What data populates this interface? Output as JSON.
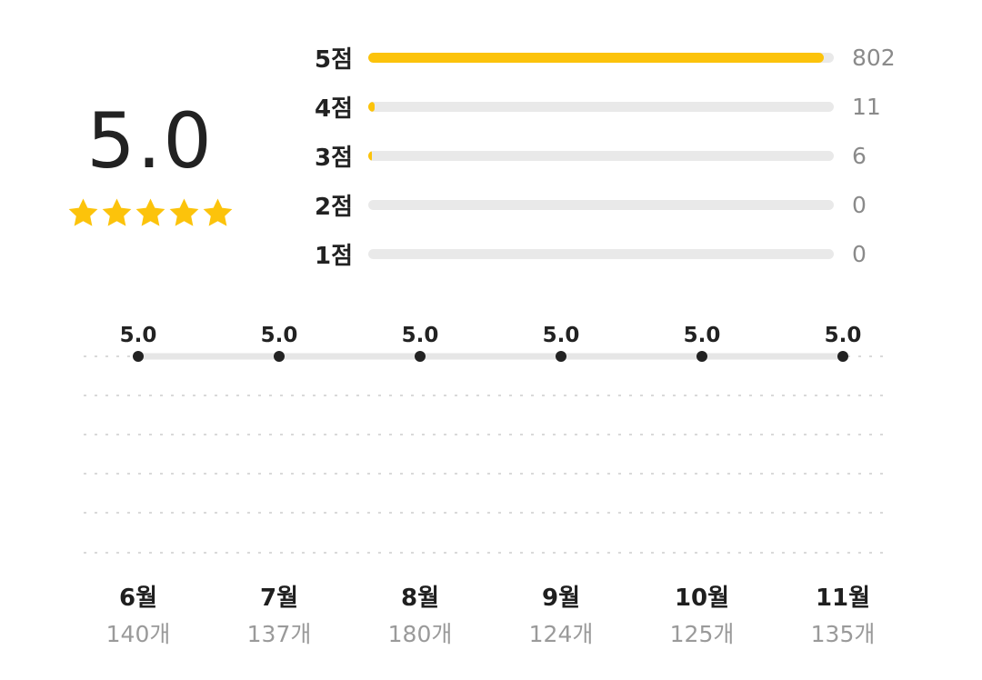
{
  "summary": {
    "average": "5.0",
    "stars_filled": 5,
    "stars_total": 5,
    "star_color": "#fcc30b"
  },
  "distribution": {
    "bar_color": "#fcc30b",
    "track_color": "#e9e9e9",
    "rows": [
      {
        "label": "5점",
        "count": "802",
        "value": 802
      },
      {
        "label": "4점",
        "count": "11",
        "value": 11
      },
      {
        "label": "3점",
        "count": "6",
        "value": 6
      },
      {
        "label": "2점",
        "count": "0",
        "value": 0
      },
      {
        "label": "1점",
        "count": "0",
        "value": 0
      }
    ]
  },
  "chart_data": {
    "type": "line",
    "categories": [
      "6월",
      "7월",
      "8월",
      "9월",
      "10월",
      "11월"
    ],
    "values": [
      5.0,
      5.0,
      5.0,
      5.0,
      5.0,
      5.0
    ],
    "value_labels": [
      "5.0",
      "5.0",
      "5.0",
      "5.0",
      "5.0",
      "5.0"
    ],
    "counts": [
      "140개",
      "137개",
      "180개",
      "124개",
      "125개",
      "135개"
    ],
    "ylim": [
      0,
      5
    ],
    "grid": true,
    "line_color": "#e6e6e6",
    "point_color": "#222222"
  }
}
